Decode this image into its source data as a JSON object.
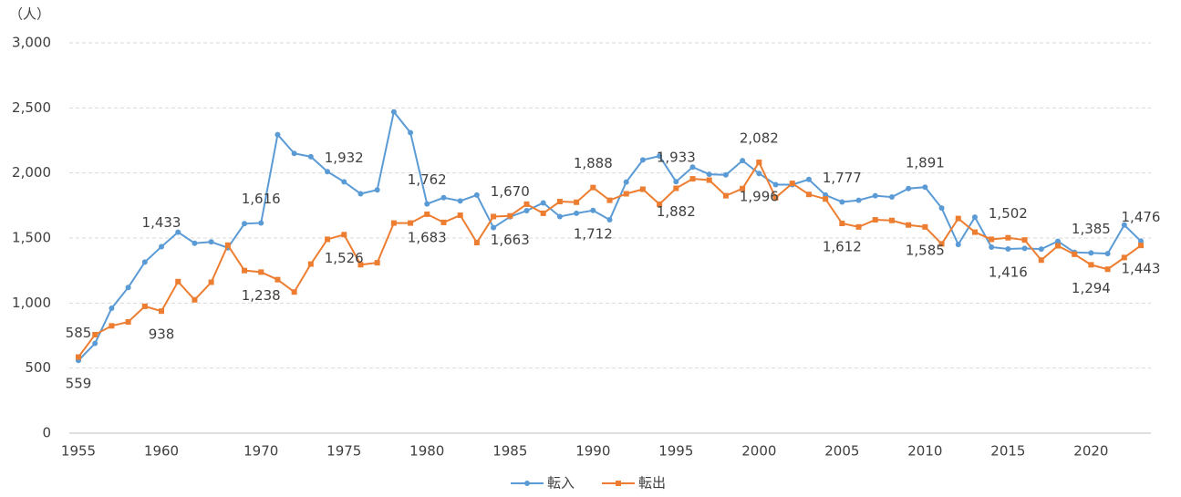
{
  "chart_data": {
    "type": "line",
    "y_axis_label": "（人）",
    "categories": [
      "1955",
      null,
      null,
      null,
      null,
      "1960",
      null,
      null,
      null,
      null,
      null,
      "1970",
      null,
      null,
      null,
      null,
      "1975",
      null,
      null,
      null,
      null,
      "1980",
      null,
      null,
      null,
      null,
      "1985",
      null,
      null,
      null,
      null,
      "1990",
      null,
      null,
      null,
      null,
      "1995",
      null,
      null,
      null,
      null,
      "2000",
      null,
      null,
      null,
      null,
      "2005",
      null,
      null,
      null,
      null,
      "2010",
      null,
      null,
      null,
      null,
      "2015",
      null,
      null,
      null,
      null,
      "2020",
      null,
      null,
      null
    ],
    "series": [
      {
        "name": "転入",
        "color": "#5b9bd5",
        "marker": "circle",
        "values": [
          559,
          690,
          960,
          1120,
          1315,
          1433,
          1545,
          1460,
          1470,
          1425,
          1610,
          1616,
          2295,
          2150,
          2125,
          2010,
          1932,
          1840,
          1870,
          2470,
          2310,
          1762,
          1810,
          1785,
          1830,
          1580,
          1663,
          1710,
          1770,
          1665,
          1690,
          1712,
          1640,
          1930,
          2100,
          2130,
          1933,
          2045,
          1990,
          1985,
          2095,
          1996,
          1910,
          1910,
          1950,
          1830,
          1777,
          1790,
          1825,
          1815,
          1880,
          1891,
          1730,
          1450,
          1660,
          1430,
          1416,
          1420,
          1415,
          1475,
          1390,
          1385,
          1380,
          1600,
          1476
        ],
        "value_labels": [
          "559",
          null,
          null,
          null,
          null,
          "1,433",
          null,
          null,
          null,
          null,
          null,
          "1,616",
          null,
          null,
          null,
          null,
          "1,932",
          null,
          null,
          null,
          null,
          "1,762",
          null,
          null,
          null,
          null,
          "1,663",
          null,
          null,
          null,
          null,
          "1,712",
          null,
          null,
          null,
          null,
          "1,933",
          null,
          null,
          null,
          null,
          "1,996",
          null,
          null,
          null,
          null,
          "1,777",
          null,
          null,
          null,
          null,
          "1,891",
          null,
          null,
          null,
          null,
          "1,416",
          null,
          null,
          null,
          null,
          "1,385",
          null,
          null,
          "1,476"
        ]
      },
      {
        "name": "転出",
        "color": "#ed7d31",
        "marker": "square",
        "values": [
          585,
          757,
          825,
          855,
          975,
          938,
          1165,
          1025,
          1160,
          1445,
          1250,
          1238,
          1180,
          1085,
          1300,
          1490,
          1526,
          1295,
          1310,
          1615,
          1615,
          1683,
          1620,
          1675,
          1465,
          1665,
          1670,
          1760,
          1690,
          1780,
          1775,
          1888,
          1790,
          1840,
          1875,
          1760,
          1882,
          1955,
          1945,
          1825,
          1880,
          2082,
          1810,
          1920,
          1835,
          1800,
          1612,
          1585,
          1640,
          1635,
          1600,
          1585,
          1455,
          1650,
          1545,
          1490,
          1502,
          1485,
          1330,
          1440,
          1375,
          1294,
          1260,
          1350,
          1443
        ],
        "value_labels": [
          "585",
          null,
          null,
          null,
          null,
          "938",
          null,
          null,
          null,
          null,
          null,
          "1,238",
          null,
          null,
          null,
          null,
          "1,526",
          null,
          null,
          null,
          null,
          "1,683",
          null,
          null,
          null,
          null,
          "1,670",
          null,
          null,
          null,
          null,
          "1,888",
          null,
          null,
          null,
          null,
          "1,882",
          null,
          null,
          null,
          null,
          "2,082",
          null,
          null,
          null,
          null,
          "1,612",
          null,
          null,
          null,
          null,
          "1,585",
          null,
          null,
          null,
          null,
          "1,502",
          null,
          null,
          null,
          null,
          "1,294",
          null,
          null,
          "1,443"
        ]
      }
    ],
    "ylim": [
      0,
      3000
    ],
    "yticks": [
      0,
      500,
      {
        "value": 1000,
        "label": "1,000"
      },
      {
        "value": 1500,
        "label": "1,500"
      },
      {
        "value": 2000,
        "label": "2,000"
      },
      {
        "value": 2500,
        "label": "2,500"
      },
      {
        "value": 3000,
        "label": "3,000"
      }
    ],
    "grid": true,
    "legend": "bottom"
  }
}
